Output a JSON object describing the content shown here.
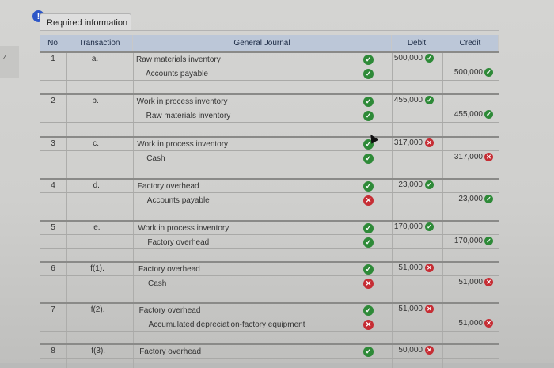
{
  "side_label": "4",
  "alert_icon": "!",
  "tab_label": "Required information",
  "headers": {
    "no": "No",
    "transaction": "Transaction",
    "journal": "General Journal",
    "debit": "Debit",
    "credit": "Credit"
  },
  "rows": [
    {
      "no": "1",
      "tr": "a.",
      "debit_acct": "Raw materials inventory",
      "credit_acct": "Accounts payable",
      "debit": "500,000",
      "credit": "500,000",
      "acct1": "ok",
      "acct2": "ok",
      "debit_status": "ok",
      "credit_status": "ok"
    },
    {
      "no": "2",
      "tr": "b.",
      "debit_acct": "Work in process inventory",
      "credit_acct": "Raw materials inventory",
      "debit": "455,000",
      "credit": "455,000",
      "acct1": "ok",
      "acct2": "ok",
      "debit_status": "ok",
      "credit_status": "ok"
    },
    {
      "no": "3",
      "tr": "c.",
      "debit_acct": "Work in process inventory",
      "credit_acct": "Cash",
      "debit": "317,000",
      "credit": "317,000",
      "acct1": "ok",
      "acct2": "ok",
      "debit_status": "bad",
      "credit_status": "bad"
    },
    {
      "no": "4",
      "tr": "d.",
      "debit_acct": "Factory overhead",
      "credit_acct": "Accounts payable",
      "debit": "23,000",
      "credit": "23,000",
      "acct1": "ok",
      "acct2": "bad",
      "debit_status": "ok",
      "credit_status": "ok"
    },
    {
      "no": "5",
      "tr": "e.",
      "debit_acct": "Work in process inventory",
      "credit_acct": "Factory overhead",
      "debit": "170,000",
      "credit": "170,000",
      "acct1": "ok",
      "acct2": "ok",
      "debit_status": "ok",
      "credit_status": "ok"
    },
    {
      "no": "6",
      "tr": "f(1).",
      "debit_acct": "Factory overhead",
      "credit_acct": "Cash",
      "debit": "51,000",
      "credit": "51,000",
      "acct1": "ok",
      "acct2": "bad",
      "debit_status": "bad",
      "credit_status": "bad"
    },
    {
      "no": "7",
      "tr": "f(2).",
      "debit_acct": "Factory overhead",
      "credit_acct": "Accumulated depreciation-factory equipment",
      "debit": "51,000",
      "credit": "51,000",
      "acct1": "ok",
      "acct2": "bad",
      "debit_status": "bad",
      "credit_status": "bad"
    },
    {
      "no": "8",
      "tr": "f(3).",
      "debit_acct": "Factory overhead",
      "credit_acct": "",
      "debit": "50,000",
      "credit": "",
      "acct1": "ok",
      "acct2": "",
      "debit_status": "bad",
      "credit_status": ""
    }
  ],
  "colors": {
    "ok": "#2e8a38",
    "bad": "#c62d34",
    "header": "#bcc7d8",
    "alert": "#2d56c7"
  },
  "icons": {
    "ok": "check-circle-icon",
    "bad": "x-circle-icon"
  }
}
